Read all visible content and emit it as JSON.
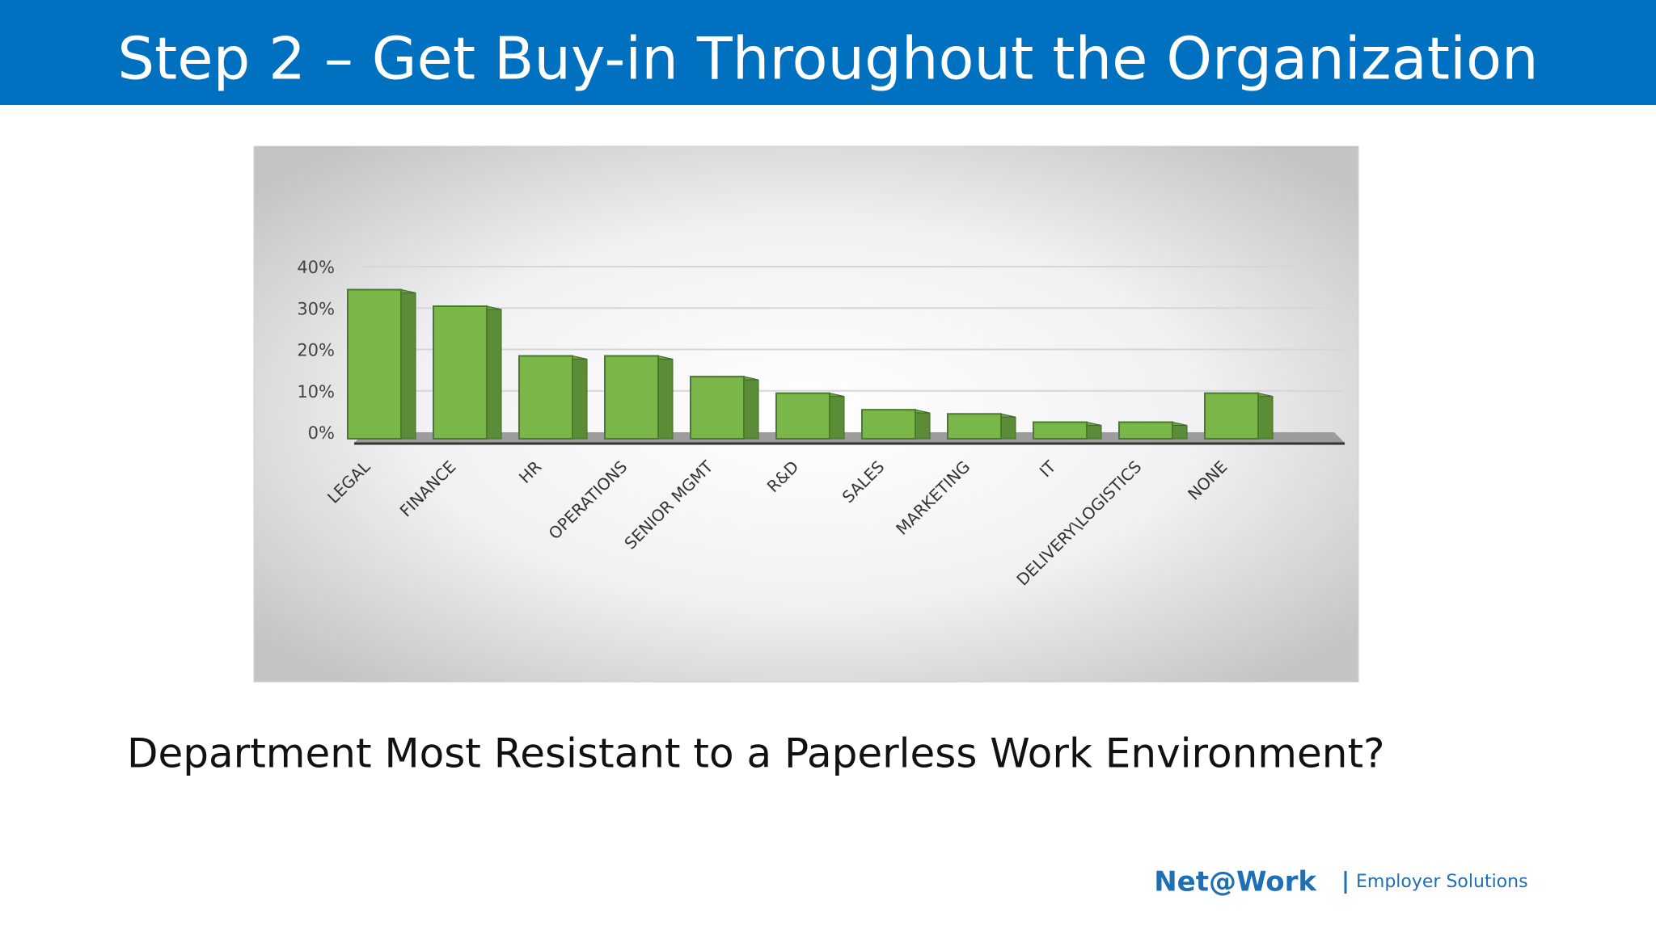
{
  "slide": {
    "title": "Step 2 – Get Buy-in Throughout the Organization",
    "caption": "Department Most Resistant to a Paperless Work Environment?",
    "logo": "Net@Work",
    "tagline": "Employer Solutions"
  },
  "chart_data": {
    "type": "bar3d",
    "categories": [
      "LEGAL",
      "FINANCE",
      "HR",
      "OPERATIONS",
      "SENIOR MGMT",
      "R&D",
      "SALES",
      "MARKETING",
      "IT",
      "DELIVERY\\LOGISTICS",
      "NONE"
    ],
    "values": [
      36,
      32,
      20,
      20,
      15,
      11,
      7,
      6,
      4,
      4,
      11
    ],
    "color": "#7ab648",
    "ylim": [
      0,
      40
    ],
    "yticks": [
      {
        "value": 0,
        "label": "0%"
      },
      {
        "value": 10,
        "label": "10%"
      },
      {
        "value": 20,
        "label": "20%"
      },
      {
        "value": 30,
        "label": "30%"
      },
      {
        "value": 40,
        "label": "40%"
      }
    ],
    "grid": true
  }
}
